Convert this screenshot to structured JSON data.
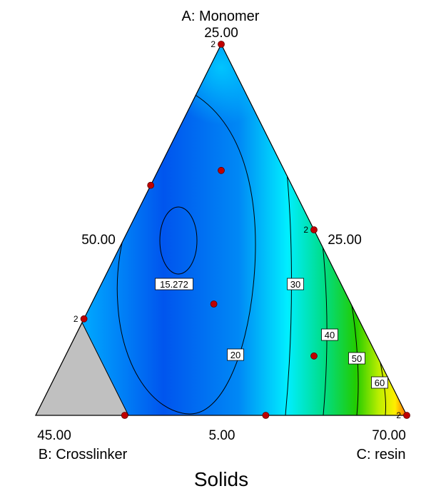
{
  "chart_data": {
    "type": "ternary-contour",
    "title": "Solids",
    "vertices": {
      "a": {
        "label": "A: Monomer",
        "value": "25.00"
      },
      "b": {
        "label": "B: Crosslinker",
        "value": "45.00"
      },
      "c": {
        "label": "C: resin",
        "value": "70.00"
      }
    },
    "edge_labels": {
      "left": "50.00",
      "right": "25.00",
      "bottom": "5.00"
    },
    "contour_labels": [
      "15.272",
      "20",
      "30",
      "40",
      "50",
      "60"
    ],
    "design_points": [
      {
        "a": 1.0,
        "b": 0.0,
        "c": 0.0,
        "replicates": "2"
      },
      {
        "a": 0.62,
        "b": 0.38,
        "c": 0.0,
        "replicates": ""
      },
      {
        "a": 0.5,
        "b": 0.0,
        "c": 0.5,
        "replicates": "2"
      },
      {
        "a": 0.26,
        "b": 0.74,
        "c": 0.0,
        "replicates": "2"
      },
      {
        "a": 0.66,
        "b": 0.17,
        "c": 0.17,
        "replicates": ""
      },
      {
        "a": 0.3,
        "b": 0.37,
        "c": 0.33,
        "replicates": ""
      },
      {
        "a": 0.0,
        "b": 0.76,
        "c": 0.24,
        "replicates": ""
      },
      {
        "a": 0.0,
        "b": 0.38,
        "c": 0.62,
        "replicates": ""
      },
      {
        "a": 0.16,
        "b": 0.17,
        "c": 0.67,
        "replicates": ""
      },
      {
        "a": 0.0,
        "b": 0.0,
        "c": 1.0,
        "replicates": "2"
      }
    ],
    "infeasible_region": "gray triangle near B vertex",
    "colors": {
      "low": "#0055ee",
      "mid": "#00eeff",
      "green": "#22cc00",
      "yellow": "#ffee00",
      "high": "#ff5500",
      "infeasible": "#c0c0c0",
      "point": "#c00000"
    }
  }
}
